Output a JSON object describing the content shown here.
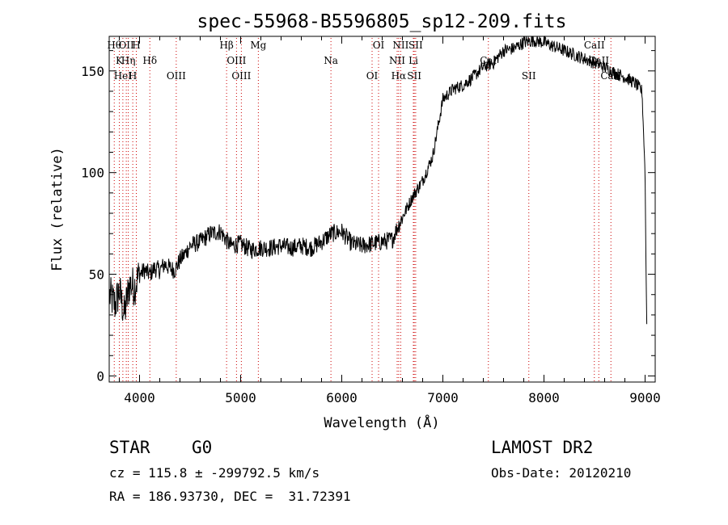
{
  "chart_data": {
    "type": "line",
    "title": "spec-55968-B5596805_sp12-209.fits",
    "xlabel": "Wavelength (Å)",
    "ylabel": "Flux (relative)",
    "xlim": [
      3700,
      9100
    ],
    "ylim": [
      -3,
      167
    ],
    "x_ticks": [
      4000,
      5000,
      6000,
      7000,
      8000,
      9000
    ],
    "y_ticks": [
      0,
      50,
      100,
      150
    ],
    "grid": false,
    "line_color": "#000000",
    "marker_color": "#cc0000",
    "anchors": [
      [
        3700,
        40
      ],
      [
        3760,
        35
      ],
      [
        3800,
        42
      ],
      [
        3850,
        30
      ],
      [
        3900,
        45
      ],
      [
        3950,
        44
      ],
      [
        4000,
        50
      ],
      [
        4050,
        52
      ],
      [
        4100,
        50
      ],
      [
        4150,
        53
      ],
      [
        4200,
        52
      ],
      [
        4250,
        55
      ],
      [
        4300,
        53
      ],
      [
        4350,
        52
      ],
      [
        4400,
        57
      ],
      [
        4450,
        60
      ],
      [
        4500,
        64
      ],
      [
        4600,
        66
      ],
      [
        4700,
        70
      ],
      [
        4800,
        71
      ],
      [
        4900,
        64
      ],
      [
        5000,
        65
      ],
      [
        5100,
        62
      ],
      [
        5200,
        63
      ],
      [
        5300,
        63
      ],
      [
        5400,
        64
      ],
      [
        5500,
        63
      ],
      [
        5600,
        64
      ],
      [
        5700,
        63
      ],
      [
        5800,
        66
      ],
      [
        5900,
        70
      ],
      [
        6000,
        71
      ],
      [
        6100,
        65
      ],
      [
        6200,
        64
      ],
      [
        6300,
        65
      ],
      [
        6400,
        66
      ],
      [
        6500,
        67
      ],
      [
        6550,
        73
      ],
      [
        6600,
        78
      ],
      [
        6700,
        88
      ],
      [
        6800,
        96
      ],
      [
        6900,
        108
      ],
      [
        6950,
        122
      ],
      [
        7000,
        136
      ],
      [
        7100,
        141
      ],
      [
        7200,
        143
      ],
      [
        7300,
        147
      ],
      [
        7400,
        152
      ],
      [
        7500,
        154
      ],
      [
        7600,
        160
      ],
      [
        7700,
        161
      ],
      [
        7800,
        164
      ],
      [
        7900,
        165
      ],
      [
        8000,
        164
      ],
      [
        8100,
        162
      ],
      [
        8200,
        160
      ],
      [
        8300,
        158
      ],
      [
        8400,
        156
      ],
      [
        8500,
        154
      ],
      [
        8600,
        152
      ],
      [
        8700,
        149
      ],
      [
        8800,
        147
      ],
      [
        8900,
        144
      ],
      [
        8970,
        140
      ],
      [
        9000,
        100
      ],
      [
        9010,
        50
      ],
      [
        9020,
        15
      ]
    ],
    "lines": [
      {
        "wave": 3750,
        "label": "Hθ"
      },
      {
        "wave": 3800,
        "label": "K"
      },
      {
        "wave": 3835,
        "label": "HeI"
      },
      {
        "wave": 3869,
        "label": "OII"
      },
      {
        "wave": 3889,
        "label": "Hη"
      },
      {
        "wave": 3933,
        "label": "H"
      },
      {
        "wave": 3968,
        "label": "H"
      },
      {
        "wave": 4102,
        "label": "Hδ"
      },
      {
        "wave": 4363,
        "label": "OIII"
      },
      {
        "wave": 4861,
        "label": "Hβ"
      },
      {
        "wave": 4959,
        "label": "OIII"
      },
      {
        "wave": 5007,
        "label": "OIII"
      },
      {
        "wave": 5175,
        "label": "Mg"
      },
      {
        "wave": 5893,
        "label": "Na"
      },
      {
        "wave": 6300,
        "label": "OI"
      },
      {
        "wave": 6364,
        "label": "OI"
      },
      {
        "wave": 6548,
        "label": "NII"
      },
      {
        "wave": 6563,
        "label": "Hα"
      },
      {
        "wave": 6583,
        "label": "NII"
      },
      {
        "wave": 6708,
        "label": "Li"
      },
      {
        "wave": 6717,
        "label": "SII"
      },
      {
        "wave": 6731,
        "label": "SII"
      },
      {
        "wave": 7450,
        "label": "CaI"
      },
      {
        "wave": 7850,
        "label": "SII"
      },
      {
        "wave": 8498,
        "label": "CaII"
      },
      {
        "wave": 8542,
        "label": "CaII"
      },
      {
        "wave": 8662,
        "label": "CaII"
      }
    ]
  },
  "info": {
    "class": "STAR",
    "subclass": "G0",
    "survey": "LAMOST DR2",
    "cz": "cz = 115.8 ± -299792.5 km/s",
    "obs_date": "Obs-Date: 20120210",
    "coords": "RA = 186.93730, DEC =  31.72391"
  }
}
